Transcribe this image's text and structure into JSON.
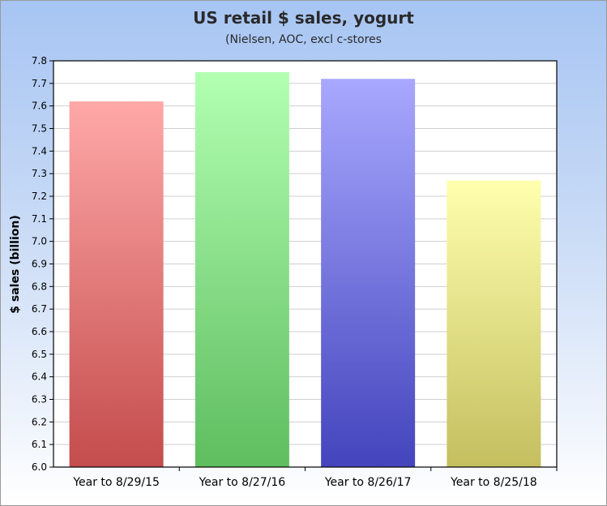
{
  "chart_data": {
    "type": "bar",
    "title": "US retail $ sales, yogurt",
    "subtitle": "(Nielsen, AOC, excl c-stores",
    "xlabel": "",
    "ylabel": "$ sales (billion)",
    "ylim": [
      6.0,
      7.8
    ],
    "ytick_step": 0.1,
    "yticks": [
      "6.0",
      "6.1",
      "6.2",
      "6.3",
      "6.4",
      "6.5",
      "6.6",
      "6.7",
      "6.8",
      "6.9",
      "7.0",
      "7.1",
      "7.2",
      "7.3",
      "7.4",
      "7.5",
      "7.6",
      "7.7",
      "7.8"
    ],
    "grid": true,
    "categories": [
      "Year to 8/29/15",
      "Year to 8/27/16",
      "Year to 8/26/17",
      "Year to 8/25/18"
    ],
    "values": [
      7.62,
      7.75,
      7.72,
      7.27
    ],
    "colors": [
      {
        "top": "#ffa8a8",
        "bottom": "#c44c4c"
      },
      {
        "top": "#b2ffb2",
        "bottom": "#5fbd5f"
      },
      {
        "top": "#a8a8ff",
        "bottom": "#4444bd"
      },
      {
        "top": "#ffffae",
        "bottom": "#c4bf5f"
      }
    ]
  }
}
